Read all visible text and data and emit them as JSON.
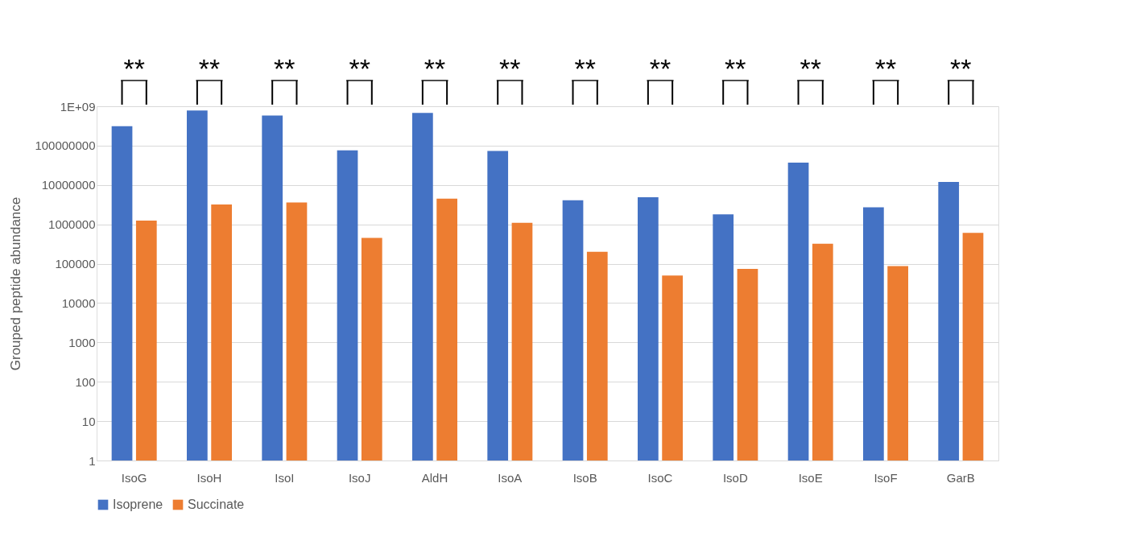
{
  "chart_data": {
    "type": "bar",
    "ylabel": "Grouped peptide abundance",
    "categories": [
      "IsoG",
      "IsoH",
      "IsoI",
      "IsoJ",
      "AldH",
      "IsoA",
      "IsoB",
      "IsoC",
      "IsoD",
      "IsoE",
      "IsoF",
      "GarB"
    ],
    "series": [
      {
        "name": "Isoprene",
        "color": "#4472c4",
        "values": [
          310000000,
          780000000,
          580000000,
          76000000,
          680000000,
          73000000,
          4100000,
          4900000,
          1800000,
          37000000,
          2700000,
          12000000
        ]
      },
      {
        "name": "Succinate",
        "color": "#ed7d31",
        "values": [
          1250000,
          3200000,
          3600000,
          450000,
          4500000,
          1100000,
          200000,
          50000,
          74000,
          320000,
          87000,
          610000
        ]
      }
    ],
    "log": "y",
    "ylim": [
      1,
      1000000000
    ],
    "yticks": [
      1,
      10,
      100,
      1000,
      10000,
      100000,
      1000000,
      10000000,
      100000000,
      {
        "value": 1000000000,
        "label": "1E+09"
      }
    ],
    "grid": "y",
    "legend": "bottom",
    "annotations": [
      "**",
      "**",
      "**",
      "**",
      "**",
      "**",
      "**",
      "**",
      "**",
      "**",
      "**",
      "**"
    ]
  }
}
